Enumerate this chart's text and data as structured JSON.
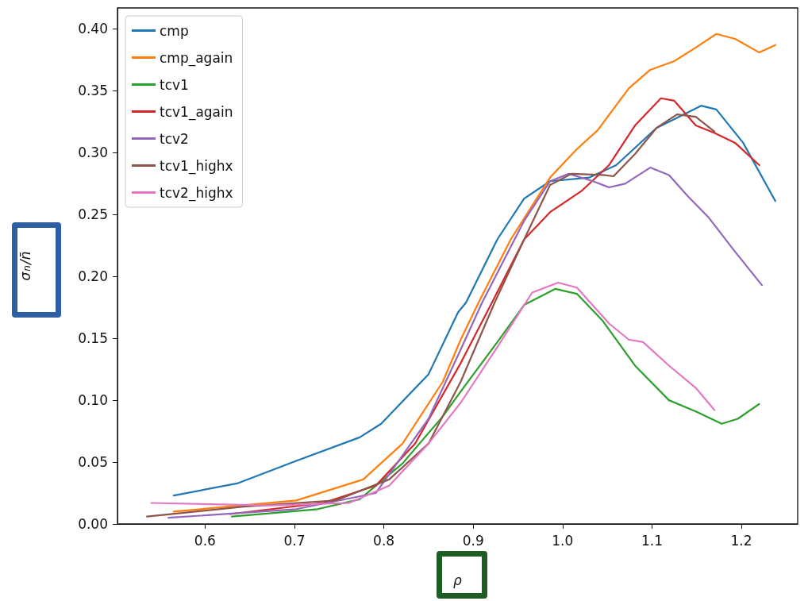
{
  "chart_data": {
    "type": "line",
    "xlabel": "ρ",
    "ylabel": "σ$_{n}$/n̄",
    "xlim": [
      0.502,
      1.263
    ],
    "ylim": [
      0,
      0.417
    ],
    "xticks": [
      0.6,
      0.7,
      0.8,
      0.9,
      {
        "value": 1,
        "label": "1.0"
      },
      1.1,
      1.2
    ],
    "yticks": [
      {
        "value": 0,
        "label": "0.00"
      },
      {
        "value": 0.05,
        "label": "0.05"
      },
      {
        "value": 0.1,
        "label": "0.10"
      },
      {
        "value": 0.15,
        "label": "0.15"
      },
      {
        "value": 0.2,
        "label": "0.20"
      },
      {
        "value": 0.25,
        "label": "0.25"
      },
      {
        "value": 0.3,
        "label": "0.30"
      },
      {
        "value": 0.35,
        "label": "0.35"
      },
      {
        "value": 0.4,
        "label": "0.40"
      }
    ],
    "grid": false,
    "legend": "top left",
    "marker": "none",
    "line_style": "solid",
    "series": [
      {
        "name": "cmp",
        "color": "#1f77b4",
        "x": [
          0.565,
          0.637,
          0.702,
          0.773,
          0.797,
          0.85,
          0.883,
          0.892,
          0.927,
          0.957,
          0.986,
          1.03,
          1.06,
          1.105,
          1.155,
          1.172,
          1.202,
          1.238
        ],
        "values": [
          0.023,
          0.033,
          0.051,
          0.07,
          0.081,
          0.121,
          0.171,
          0.179,
          0.23,
          0.263,
          0.277,
          0.28,
          0.29,
          0.32,
          0.338,
          0.335,
          0.308,
          0.261
        ]
      },
      {
        "name": "cmp_again",
        "color": "#ff7f0e",
        "x": [
          0.565,
          0.702,
          0.777,
          0.821,
          0.866,
          0.886,
          0.906,
          0.942,
          0.986,
          1.016,
          1.039,
          1.074,
          1.098,
          1.125,
          1.149,
          1.172,
          1.193,
          1.22,
          1.238
        ],
        "values": [
          0.01,
          0.019,
          0.036,
          0.065,
          0.115,
          0.149,
          0.179,
          0.23,
          0.28,
          0.303,
          0.318,
          0.352,
          0.367,
          0.374,
          0.385,
          0.396,
          0.392,
          0.381,
          0.387
        ]
      },
      {
        "name": "tcv1",
        "color": "#2ca02c",
        "x": [
          0.63,
          0.726,
          0.773,
          0.821,
          0.866,
          0.886,
          0.927,
          0.957,
          0.992,
          1.016,
          1.045,
          1.081,
          1.119,
          1.149,
          1.178,
          1.196,
          1.22
        ],
        "values": [
          0.006,
          0.012,
          0.02,
          0.049,
          0.087,
          0.107,
          0.147,
          0.177,
          0.19,
          0.186,
          0.164,
          0.128,
          0.1,
          0.091,
          0.081,
          0.085,
          0.097
        ]
      },
      {
        "name": "tcv1_again",
        "color": "#d62728",
        "x": [
          0.628,
          0.732,
          0.791,
          0.835,
          0.886,
          0.921,
          0.957,
          0.986,
          1.021,
          1.052,
          1.081,
          1.11,
          1.125,
          1.149,
          1.17,
          1.193,
          1.22
        ],
        "values": [
          0.008,
          0.017,
          0.031,
          0.065,
          0.13,
          0.179,
          0.23,
          0.252,
          0.269,
          0.29,
          0.322,
          0.344,
          0.342,
          0.322,
          0.316,
          0.308,
          0.29
        ]
      },
      {
        "name": "tcv2",
        "color": "#9467bd",
        "x": [
          0.559,
          0.702,
          0.791,
          0.85,
          0.886,
          0.91,
          0.957,
          0.986,
          1.007,
          1.034,
          1.052,
          1.07,
          1.098,
          1.119,
          1.14,
          1.163,
          1.193,
          1.223
        ],
        "values": [
          0.005,
          0.012,
          0.025,
          0.085,
          0.141,
          0.179,
          0.245,
          0.277,
          0.283,
          0.277,
          0.272,
          0.275,
          0.288,
          0.282,
          0.265,
          0.248,
          0.22,
          0.193
        ]
      },
      {
        "name": "tcv1_highx",
        "color": "#8c564b",
        "x": [
          0.535,
          0.643,
          0.746,
          0.806,
          0.85,
          0.886,
          0.924,
          0.957,
          0.986,
          1.01,
          1.045,
          1.057,
          1.081,
          1.105,
          1.128,
          1.149,
          1.17
        ],
        "values": [
          0.006,
          0.014,
          0.019,
          0.036,
          0.065,
          0.115,
          0.179,
          0.23,
          0.274,
          0.283,
          0.282,
          0.281,
          0.299,
          0.32,
          0.331,
          0.329,
          0.317
        ]
      },
      {
        "name": "tcv2_highx",
        "color": "#e377c2",
        "x": [
          0.54,
          0.673,
          0.761,
          0.806,
          0.85,
          0.886,
          0.927,
          0.966,
          0.995,
          1.016,
          1.052,
          1.074,
          1.09,
          1.119,
          1.149,
          1.17
        ],
        "values": [
          0.017,
          0.015,
          0.017,
          0.031,
          0.065,
          0.098,
          0.143,
          0.187,
          0.195,
          0.191,
          0.162,
          0.149,
          0.147,
          0.128,
          0.11,
          0.092
        ]
      }
    ]
  }
}
